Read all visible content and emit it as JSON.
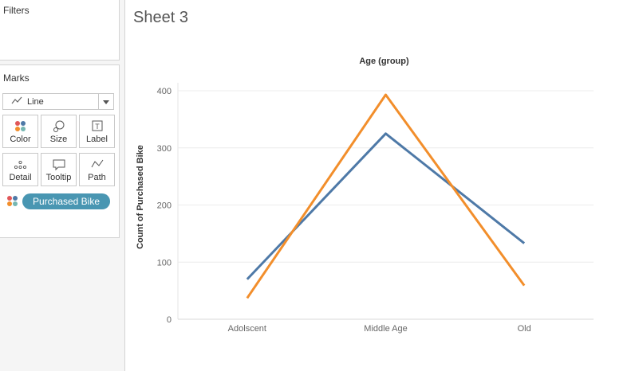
{
  "sheet": {
    "title": "Sheet 3"
  },
  "filters": {
    "title": "Filters"
  },
  "marks": {
    "title": "Marks",
    "mark_type": "Line",
    "buttons": [
      {
        "label": "Color",
        "icon": "color-dots-icon"
      },
      {
        "label": "Size",
        "icon": "size-icon"
      },
      {
        "label": "Label",
        "icon": "label-icon"
      },
      {
        "label": "Detail",
        "icon": "detail-icon"
      },
      {
        "label": "Tooltip",
        "icon": "tooltip-icon"
      },
      {
        "label": "Path",
        "icon": "path-icon"
      }
    ],
    "pill": "Purchased Bike"
  },
  "chart_data": {
    "type": "line",
    "title": "Age (group)",
    "xlabel": "",
    "ylabel": "Count of Purchased Bike",
    "categories": [
      "Adolscent",
      "Middle Age",
      "Old"
    ],
    "ylim": [
      0,
      400
    ],
    "yticks": [
      0,
      100,
      200,
      300,
      400
    ],
    "grid": true,
    "series": [
      {
        "values": [
          70,
          325,
          133
        ],
        "color": "#4e79a7"
      },
      {
        "values": [
          37,
          393,
          59
        ],
        "color": "#f28e2b"
      }
    ]
  }
}
